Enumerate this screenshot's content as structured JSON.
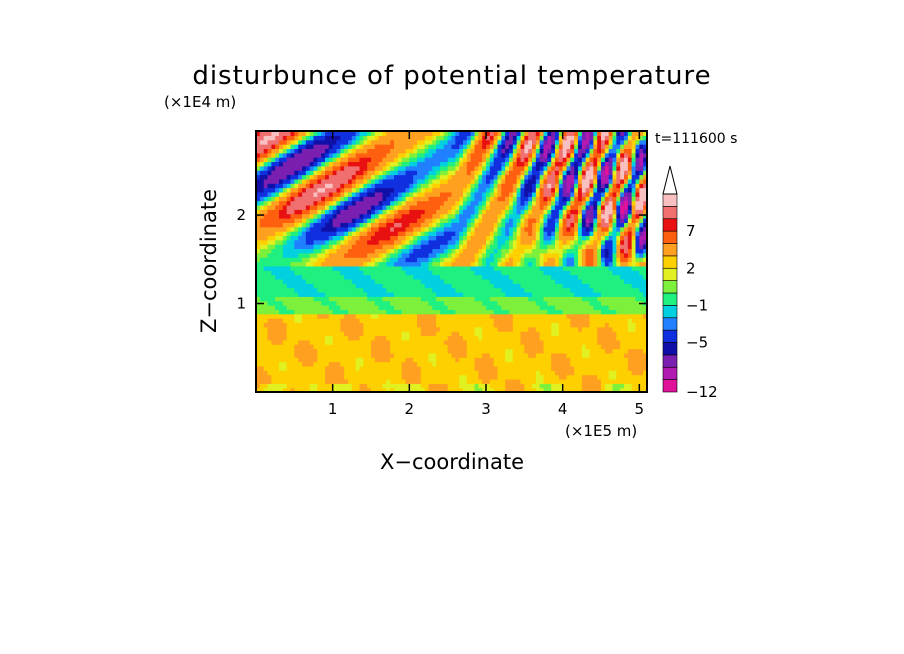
{
  "chart_data": {
    "type": "heatmap",
    "title": "disturbunce of potential temperature",
    "xlabel": "X−coordinate",
    "ylabel": "Z−coordinate",
    "x_unit_label": "(×1E5 m)",
    "y_unit_label": "(×1E4 m)",
    "time_label": "t=111600 s",
    "xlim": [
      0,
      5.1
    ],
    "ylim": [
      0,
      2.95
    ],
    "x_ticks": [
      {
        "value": 1,
        "label": "1"
      },
      {
        "value": 2,
        "label": "2"
      },
      {
        "value": 3,
        "label": "3"
      },
      {
        "value": 4,
        "label": "4"
      },
      {
        "value": 5,
        "label": "5"
      }
    ],
    "y_ticks": [
      {
        "value": 1,
        "label": "1"
      },
      {
        "value": 2,
        "label": "2"
      }
    ],
    "colorbar": {
      "levels": [
        -12,
        -10,
        -8,
        -6,
        -5,
        -3,
        -2,
        -1,
        0,
        1,
        2,
        3,
        5,
        7,
        8,
        10
      ],
      "colors": [
        "#e0129a",
        "#b01ab0",
        "#7a1fb0",
        "#1010a8",
        "#1030e0",
        "#2080ff",
        "#00d0e0",
        "#20f080",
        "#7cf03a",
        "#e0f020",
        "#ffd000",
        "#ffa020",
        "#ff6010",
        "#e81010",
        "#f07070",
        "#f8c0c0"
      ],
      "labels": [
        {
          "value": -12,
          "label": "−12"
        },
        {
          "value": -5,
          "label": "−5"
        },
        {
          "value": -1,
          "label": "−1"
        },
        {
          "value": 2,
          "label": "2"
        },
        {
          "value": 7,
          "label": "7"
        }
      ],
      "extend": "max"
    }
  }
}
